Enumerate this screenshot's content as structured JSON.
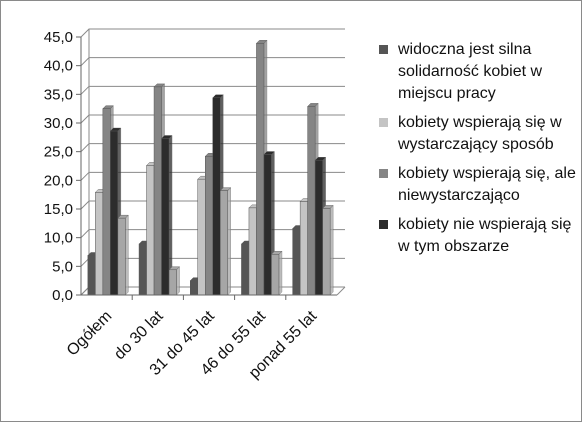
{
  "chart_data": {
    "type": "bar",
    "categories": [
      "Ogółem",
      "do 30 lat",
      "31 do 45 lat",
      "46 do 55 lat",
      "ponad 55 lat"
    ],
    "series": [
      {
        "name": "widoczna jest silna solidarność kobiet w miejscu pracy",
        "color": "#555555",
        "values": [
          6.9,
          8.9,
          2.5,
          8.9,
          11.6
        ]
      },
      {
        "name": "kobiety wspierają się w wystarczający sposób",
        "color": "#c4c4c4",
        "values": [
          17.9,
          22.6,
          20.2,
          15.2,
          16.3
        ]
      },
      {
        "name": "kobiety wspierają się, ale niewystarczająco",
        "color": "#858585",
        "values": [
          32.5,
          36.3,
          24.2,
          43.9,
          32.9
        ]
      },
      {
        "name": "kobiety nie wspierają się w tym obszarze",
        "color": "#2c2c2c",
        "values": [
          28.6,
          27.3,
          34.4,
          24.5,
          23.5
        ]
      },
      {
        "name": "",
        "color": "#a6a6a6",
        "values": [
          13.4,
          4.4,
          18.2,
          7.1,
          15.1
        ]
      }
    ],
    "ylim": [
      0,
      45
    ],
    "yticks": [
      "0,0",
      "5,0",
      "10,0",
      "15,0",
      "20,0",
      "25,0",
      "30,0",
      "35,0",
      "40,0",
      "45,0"
    ],
    "grid": true,
    "legend_position": "right"
  }
}
